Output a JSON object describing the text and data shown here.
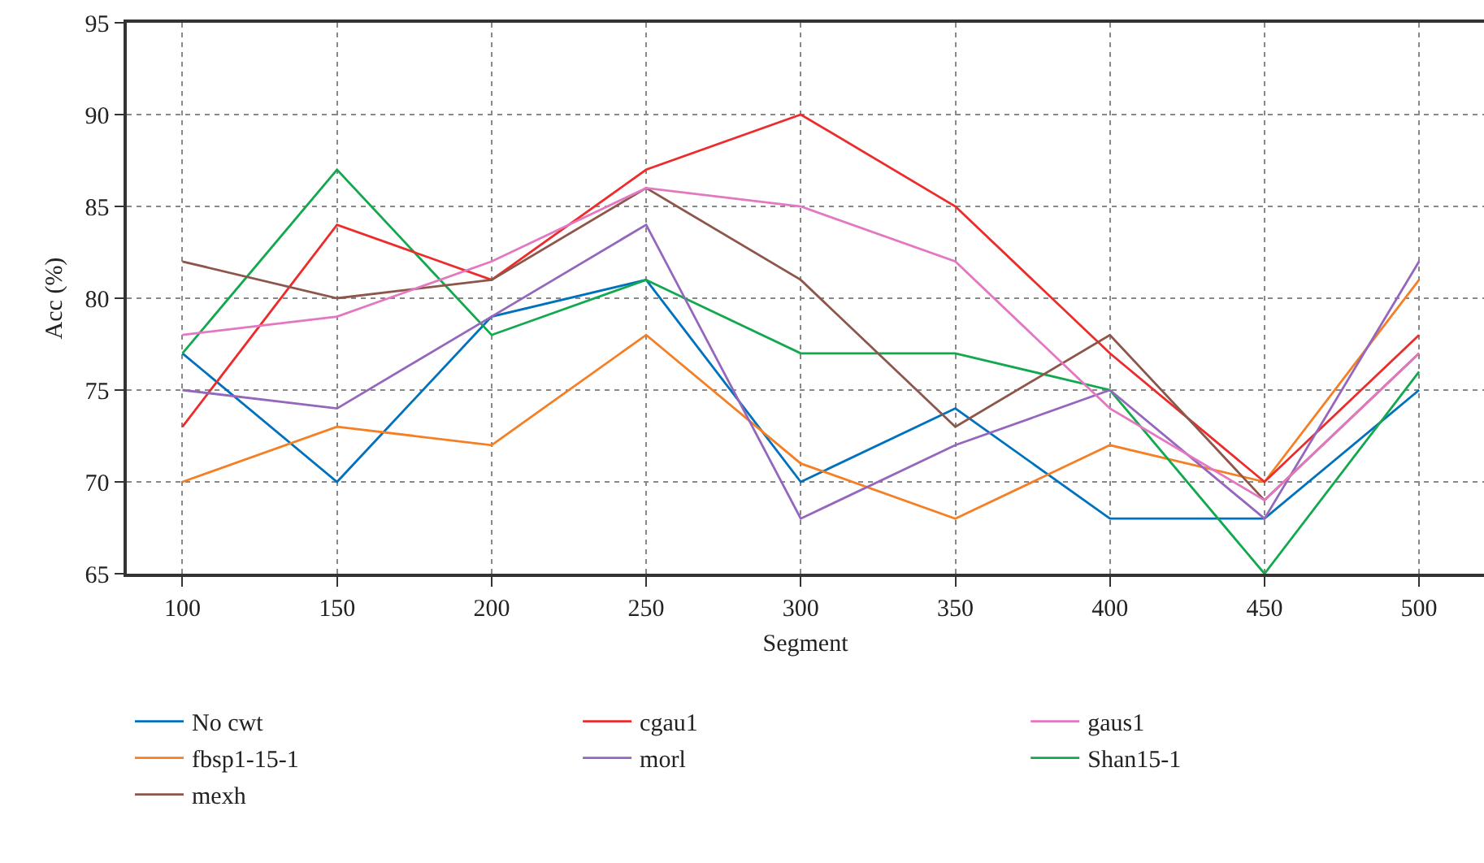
{
  "chart_data": {
    "type": "line",
    "xlabel": "Segment",
    "ylabel": "Acc (%)",
    "x": [
      100,
      150,
      200,
      250,
      300,
      350,
      400,
      450,
      500
    ],
    "xlim": [
      82,
      521
    ],
    "xticks": [
      100,
      150,
      200,
      250,
      300,
      350,
      400,
      450,
      500
    ],
    "ylim": [
      65,
      95
    ],
    "yticks": [
      65,
      70,
      75,
      80,
      85,
      90,
      95
    ],
    "grid": true,
    "legend": "bottom",
    "marker": "none",
    "line_style": "solid",
    "series": [
      {
        "name": "No cwt",
        "color": "#0072bd",
        "values": [
          77,
          70,
          79,
          81,
          70,
          74,
          68,
          68,
          75
        ]
      },
      {
        "name": "fbsp1-15-1",
        "color": "#f47f24",
        "values": [
          70,
          73,
          72,
          78,
          71,
          68,
          72,
          70,
          81
        ]
      },
      {
        "name": "Shan15-1",
        "color": "#12a84e",
        "values": [
          77,
          87,
          78,
          81,
          77,
          77,
          75,
          65,
          76
        ]
      },
      {
        "name": "cgau1",
        "color": "#ee2b2b",
        "values": [
          73,
          84,
          81,
          87,
          90,
          85,
          77,
          70,
          78
        ]
      },
      {
        "name": "morl",
        "color": "#9467bd",
        "values": [
          75,
          74,
          79,
          84,
          68,
          72,
          75,
          68,
          82
        ]
      },
      {
        "name": "mexh",
        "color": "#8c564b",
        "values": [
          82,
          80,
          81,
          86,
          81,
          73,
          78,
          69,
          77
        ]
      },
      {
        "name": "gaus1",
        "color": "#e377c2",
        "values": [
          78,
          79,
          82,
          86,
          85,
          82,
          74,
          69,
          77
        ]
      }
    ]
  }
}
